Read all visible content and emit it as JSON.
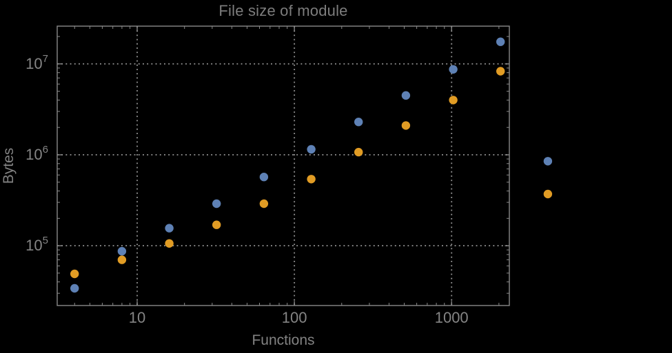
{
  "chart": {
    "title": "File size of module",
    "xlabel": "Functions",
    "ylabel": "Bytes"
  },
  "chart_data": {
    "type": "scatter",
    "title": "File size of module",
    "xlabel": "Functions",
    "ylabel": "Bytes",
    "x_scale": "log",
    "y_scale": "log",
    "xlim": [
      3.1,
      2330
    ],
    "ylim": [
      22000,
      26000000
    ],
    "grid": true,
    "grid_style": "dotted",
    "legend": "none",
    "clip_points": false,
    "x_ticks": [
      {
        "value": 10,
        "label": "10"
      },
      {
        "value": 100,
        "label": "100"
      },
      {
        "value": 1000,
        "label": "1000"
      }
    ],
    "y_ticks": [
      {
        "value": 100000,
        "label": "10^5"
      },
      {
        "value": 1000000,
        "label": "10^6"
      },
      {
        "value": 10000000,
        "label": "10^7"
      }
    ],
    "colors": {
      "background": "#000000",
      "frame": "#8a8a8a",
      "grid": "#8c8c8c",
      "tick_label": "#858585",
      "title": "#7d7d7d",
      "series_blue": "#5E81B5",
      "series_orange": "#E19C24"
    },
    "marker_radius": 6.2,
    "series": [
      {
        "name": "series-blue",
        "color": "#5E81B5",
        "marker": "circle",
        "points": [
          [
            4,
            34000
          ],
          [
            8,
            87000
          ],
          [
            16,
            156000
          ],
          [
            32,
            290000
          ],
          [
            64,
            570000
          ],
          [
            128,
            1150000
          ],
          [
            256,
            2300000
          ],
          [
            512,
            4500000
          ],
          [
            1024,
            8700000
          ],
          [
            2048,
            17500000
          ],
          [
            4096,
            850000
          ]
        ]
      },
      {
        "name": "series-orange",
        "color": "#E19C24",
        "marker": "circle",
        "points": [
          [
            4,
            49000
          ],
          [
            8,
            70000
          ],
          [
            16,
            106000
          ],
          [
            32,
            170000
          ],
          [
            64,
            290000
          ],
          [
            128,
            540000
          ],
          [
            256,
            1070000
          ],
          [
            512,
            2100000
          ],
          [
            1024,
            4000000
          ],
          [
            2048,
            8300000
          ],
          [
            4096,
            370000
          ]
        ]
      }
    ]
  }
}
